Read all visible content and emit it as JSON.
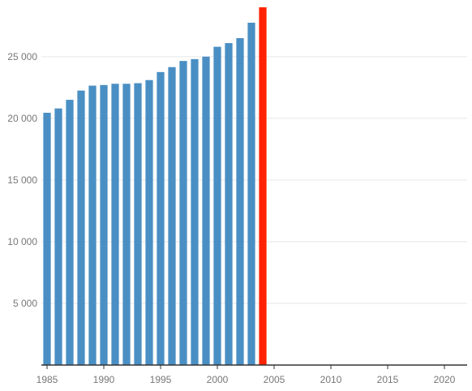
{
  "chart_data": {
    "type": "bar",
    "title": "",
    "xlabel": "",
    "ylabel": "",
    "x": [
      1985,
      1986,
      1987,
      1988,
      1989,
      1990,
      1991,
      1992,
      1993,
      1994,
      1995,
      1996,
      1997,
      1998,
      1999,
      2000,
      2001,
      2002,
      2003,
      2004
    ],
    "values": [
      20450,
      20800,
      21500,
      22250,
      22650,
      22700,
      22800,
      22800,
      22850,
      23100,
      23750,
      24150,
      24650,
      24800,
      25000,
      25800,
      26100,
      26500,
      27750,
      29000
    ],
    "highlight": {
      "x": 2004,
      "color": "#ff2200"
    },
    "bar_color": "#4a8fc4",
    "xlim": [
      1984.5,
      2022
    ],
    "ylim": [
      0,
      29000
    ],
    "x_ticks": [
      1985,
      1990,
      1995,
      2000,
      2005,
      2010,
      2015,
      2020
    ],
    "y_ticks": [
      5000,
      10000,
      15000,
      20000,
      25000
    ],
    "y_tick_labels": [
      "5 000",
      "10 000",
      "15 000",
      "20 000",
      "25 000"
    ],
    "grid": "horizontal",
    "legend": "none"
  }
}
